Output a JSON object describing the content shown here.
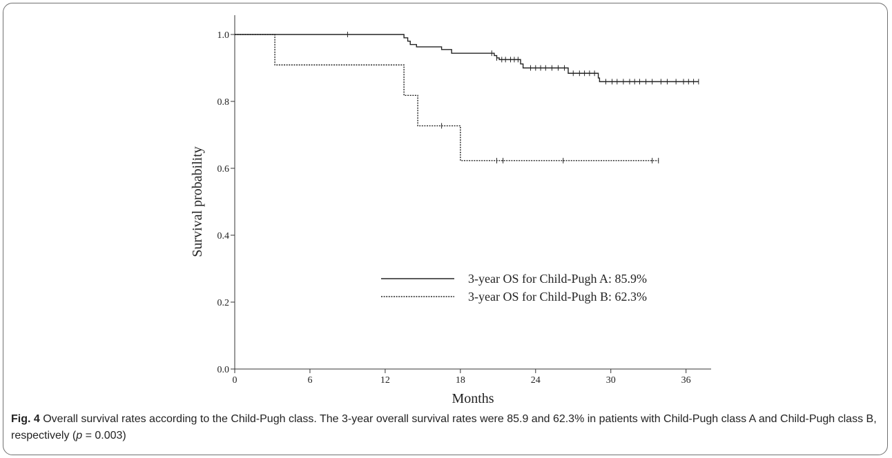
{
  "caption": {
    "label": "Fig. 4",
    "text_before_p": " Overall survival rates according to the Child-Pugh class. The 3-year overall survival rates were 85.9 and 62.3% in patients with Child-Pugh class A and Child-Pugh class B, respectively (",
    "p_symbol": "p",
    "p_value": " = 0.003)"
  },
  "chart_data": {
    "type": "line",
    "subtype": "kaplan-meier step curve",
    "title": "",
    "xlabel": "Months",
    "ylabel": "Survival probability",
    "xlim": [
      0,
      38
    ],
    "ylim": [
      0,
      1.0
    ],
    "x_ticks": [
      0,
      6,
      12,
      18,
      24,
      30,
      36
    ],
    "y_ticks": [
      0.0,
      0.2,
      0.4,
      0.6,
      0.8,
      1.0
    ],
    "y_tick_labels": [
      "0.0",
      "0.2",
      "0.4",
      "0.6",
      "0.8",
      "1.0"
    ],
    "grid": false,
    "legend_position": "center-bottom",
    "series": [
      {
        "name": "3-year OS for Child-Pugh A: 85.9%",
        "line_style": "solid",
        "color": "#222222",
        "steps": [
          [
            0,
            1.0
          ],
          [
            13.5,
            0.99
          ],
          [
            13.8,
            0.98
          ],
          [
            14.0,
            0.97
          ],
          [
            14.5,
            0.963
          ],
          [
            16.5,
            0.955
          ],
          [
            17.3,
            0.944
          ],
          [
            20.7,
            0.937
          ],
          [
            20.9,
            0.93
          ],
          [
            21.1,
            0.925
          ],
          [
            22.8,
            0.912
          ],
          [
            23.0,
            0.9
          ],
          [
            26.6,
            0.884
          ],
          [
            29.0,
            0.87
          ],
          [
            29.1,
            0.859
          ]
        ],
        "end_x": 37,
        "censored": [
          9.0,
          20.5,
          20.9,
          21.3,
          21.6,
          22.0,
          22.3,
          22.6,
          23.6,
          24.0,
          24.4,
          24.8,
          25.3,
          25.8,
          26.3,
          27.0,
          27.5,
          27.9,
          28.3,
          28.7,
          29.6,
          30.1,
          30.5,
          31.0,
          31.5,
          31.9,
          32.3,
          32.8,
          33.3,
          34.0,
          34.5,
          35.2,
          35.8,
          36.2,
          36.6,
          37.0
        ]
      },
      {
        "name": "3-year OS for Child-Pugh B: 62.3%",
        "line_style": "dotted",
        "color": "#222222",
        "steps": [
          [
            0,
            1.0
          ],
          [
            3.2,
            0.909
          ],
          [
            13.5,
            0.818
          ],
          [
            14.6,
            0.727
          ],
          [
            18.0,
            0.623
          ]
        ],
        "end_x": 33.8,
        "censored": [
          16.5,
          20.9,
          21.4,
          26.2,
          33.3,
          33.8
        ]
      }
    ]
  }
}
